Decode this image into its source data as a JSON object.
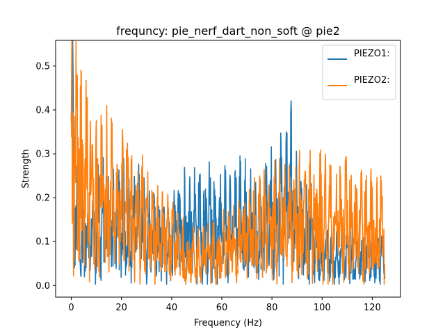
{
  "chart_data": {
    "type": "line",
    "title": "frequncy: pie_nerf_dart_non_soft @ pie2",
    "xlabel": "Frequency (Hz)",
    "ylabel": "Strength",
    "xlim": [
      -6.25,
      131.25
    ],
    "ylim": [
      -0.0265,
      0.5585
    ],
    "xticks": [
      0,
      20,
      40,
      60,
      80,
      100,
      120
    ],
    "yticks": [
      0.0,
      0.1,
      0.2,
      0.3,
      0.4,
      0.5
    ],
    "xtick_labels": [
      "0",
      "20",
      "40",
      "60",
      "80",
      "100",
      "120"
    ],
    "ytick_labels": [
      "0.0",
      "0.1",
      "0.2",
      "0.3",
      "0.4",
      "0.5"
    ],
    "grid": false,
    "legend": "top-right",
    "series": [
      {
        "name": "PIEZO1:",
        "color": "#1f77b4",
        "x": [
          0,
          0.3,
          1,
          2,
          3,
          5,
          8,
          10,
          12,
          15,
          18,
          20,
          22,
          25,
          28,
          30,
          32,
          35,
          38,
          40,
          42,
          45,
          48,
          50,
          52,
          55,
          58,
          60,
          62,
          65,
          68,
          70,
          72,
          75,
          78,
          80,
          82,
          85,
          87,
          88,
          90,
          92,
          95,
          98,
          100,
          102,
          105,
          108,
          110,
          112,
          115,
          118,
          120,
          122,
          125
        ],
        "values": [
          0.42,
          0.535,
          0.26,
          0.2,
          0.18,
          0.16,
          0.15,
          0.17,
          0.2,
          0.19,
          0.2,
          0.2,
          0.18,
          0.19,
          0.2,
          0.16,
          0.15,
          0.13,
          0.12,
          0.1,
          0.19,
          0.2,
          0.19,
          0.18,
          0.2,
          0.2,
          0.17,
          0.18,
          0.19,
          0.2,
          0.21,
          0.19,
          0.17,
          0.18,
          0.2,
          0.22,
          0.23,
          0.25,
          0.27,
          0.3,
          0.22,
          0.17,
          0.16,
          0.12,
          0.08,
          0.09,
          0.09,
          0.09,
          0.1,
          0.09,
          0.08,
          0.08,
          0.09,
          0.08,
          0.09
        ]
      },
      {
        "name": "PIEZO2:",
        "color": "#ff7f0e",
        "x": [
          0,
          0.3,
          1,
          2,
          3,
          5,
          8,
          10,
          12,
          15,
          18,
          20,
          22,
          25,
          28,
          30,
          32,
          35,
          38,
          40,
          42,
          45,
          48,
          50,
          52,
          55,
          58,
          60,
          62,
          65,
          68,
          70,
          72,
          75,
          78,
          80,
          82,
          85,
          88,
          90,
          92,
          95,
          98,
          100,
          102,
          105,
          108,
          110,
          112,
          115,
          118,
          120,
          122,
          125
        ],
        "values": [
          0.4,
          0.5,
          0.42,
          0.37,
          0.36,
          0.34,
          0.3,
          0.28,
          0.27,
          0.27,
          0.25,
          0.24,
          0.23,
          0.22,
          0.2,
          0.18,
          0.16,
          0.15,
          0.14,
          0.13,
          0.11,
          0.1,
          0.09,
          0.09,
          0.09,
          0.1,
          0.1,
          0.11,
          0.12,
          0.13,
          0.14,
          0.15,
          0.16,
          0.17,
          0.18,
          0.18,
          0.19,
          0.19,
          0.2,
          0.2,
          0.21,
          0.21,
          0.22,
          0.22,
          0.21,
          0.21,
          0.2,
          0.2,
          0.19,
          0.19,
          0.18,
          0.18,
          0.18,
          0.17
        ]
      }
    ]
  }
}
